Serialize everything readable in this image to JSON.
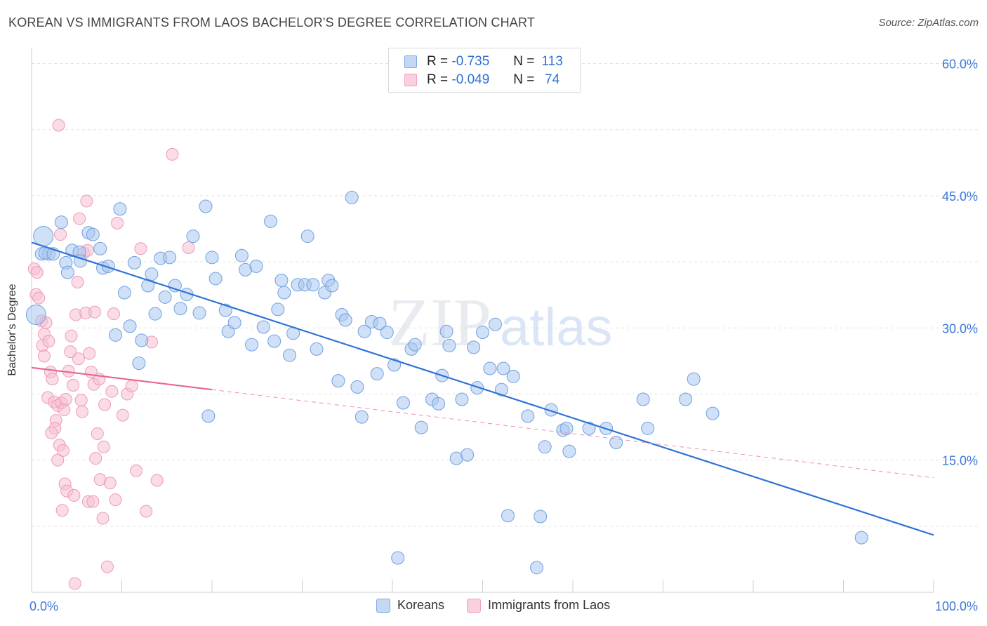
{
  "header": {
    "title": "KOREAN VS IMMIGRANTS FROM LAOS BACHELOR'S DEGREE CORRELATION CHART",
    "source": "Source: ZipAtlas.com"
  },
  "watermark": {
    "zip": "ZIP",
    "atlas": "atlas"
  },
  "legend": {
    "r_label": "R =",
    "n_label": "N =",
    "rows": [
      {
        "r": "-0.735",
        "n": "113",
        "color": "#7aaae8"
      },
      {
        "r": "-0.049",
        "n": "74",
        "color": "#f2a0ba"
      }
    ]
  },
  "bottom_legend": {
    "items": [
      {
        "label": "Koreans",
        "color": "#7aaae8"
      },
      {
        "label": "Immigrants from Laos",
        "color": "#f2a0ba"
      }
    ]
  },
  "chart_data": {
    "type": "scatter",
    "title": "KOREAN VS IMMIGRANTS FROM LAOS BACHELOR'S DEGREE CORRELATION CHART",
    "ylabel": "Bachelor's Degree",
    "xlabel": "",
    "xlim": [
      0,
      100
    ],
    "ylim": [
      0,
      61
    ],
    "x_tick_labels": [
      {
        "value": 0,
        "label": "0.0%"
      },
      {
        "value": 100,
        "label": "100.0%"
      }
    ],
    "y_tick_labels": [
      {
        "value": 15,
        "label": "15.0%"
      },
      {
        "value": 30,
        "label": "30.0%"
      },
      {
        "value": 45,
        "label": "45.0%"
      },
      {
        "value": 60,
        "label": "60.0%"
      }
    ],
    "grid": "horizontal dashed",
    "legend_position": "top-center",
    "series": [
      {
        "name": "Koreans",
        "color": "#4a86dc",
        "fill": "#a9c6ef",
        "trend": {
          "x": [
            0,
            100
          ],
          "y": [
            39.7,
            6.5
          ],
          "style": "solid"
        },
        "points": [
          [
            1.3,
            40.4
          ],
          [
            1.1,
            38.4
          ],
          [
            1.9,
            38.4
          ],
          [
            1.5,
            38.5
          ],
          [
            2.4,
            38.4
          ],
          [
            3.3,
            42.0
          ],
          [
            3.8,
            37.4
          ],
          [
            4.0,
            36.3
          ],
          [
            4.5,
            38.8
          ],
          [
            5.3,
            38.6
          ],
          [
            5.4,
            37.6
          ],
          [
            6.3,
            40.8
          ],
          [
            6.8,
            40.6
          ],
          [
            7.6,
            39.0
          ],
          [
            7.9,
            36.8
          ],
          [
            8.5,
            37.0
          ],
          [
            9.3,
            29.2
          ],
          [
            9.8,
            43.5
          ],
          [
            10.3,
            34.0
          ],
          [
            10.9,
            30.2
          ],
          [
            11.4,
            37.4
          ],
          [
            11.9,
            26.0
          ],
          [
            12.2,
            28.6
          ],
          [
            12.9,
            34.8
          ],
          [
            13.3,
            36.1
          ],
          [
            13.7,
            31.6
          ],
          [
            14.3,
            37.9
          ],
          [
            14.8,
            33.5
          ],
          [
            15.3,
            38.0
          ],
          [
            15.9,
            34.8
          ],
          [
            16.5,
            32.2
          ],
          [
            17.2,
            33.8
          ],
          [
            17.9,
            40.4
          ],
          [
            18.6,
            31.7
          ],
          [
            19.3,
            43.8
          ],
          [
            19.6,
            20.0
          ],
          [
            20.0,
            38.0
          ],
          [
            20.4,
            35.6
          ],
          [
            21.5,
            32.0
          ],
          [
            21.8,
            29.6
          ],
          [
            22.5,
            30.6
          ],
          [
            23.3,
            38.2
          ],
          [
            23.7,
            36.6
          ],
          [
            24.4,
            28.1
          ],
          [
            24.9,
            37.0
          ],
          [
            25.7,
            30.1
          ],
          [
            26.5,
            42.1
          ],
          [
            26.9,
            28.5
          ],
          [
            27.3,
            32.1
          ],
          [
            27.7,
            35.4
          ],
          [
            28.0,
            34.0
          ],
          [
            28.6,
            26.9
          ],
          [
            29.0,
            29.4
          ],
          [
            29.5,
            34.9
          ],
          [
            30.3,
            34.9
          ],
          [
            30.6,
            40.4
          ],
          [
            31.2,
            34.9
          ],
          [
            31.6,
            27.6
          ],
          [
            32.5,
            34.0
          ],
          [
            32.9,
            35.4
          ],
          [
            33.3,
            34.8
          ],
          [
            34.0,
            24.0
          ],
          [
            34.4,
            31.5
          ],
          [
            34.8,
            30.9
          ],
          [
            35.5,
            44.8
          ],
          [
            36.1,
            23.3
          ],
          [
            36.6,
            19.9
          ],
          [
            36.9,
            29.6
          ],
          [
            37.7,
            30.7
          ],
          [
            38.3,
            24.8
          ],
          [
            38.6,
            30.5
          ],
          [
            39.4,
            29.5
          ],
          [
            40.2,
            25.8
          ],
          [
            40.6,
            3.9
          ],
          [
            41.2,
            21.5
          ],
          [
            42.1,
            27.6
          ],
          [
            42.5,
            28.1
          ],
          [
            43.2,
            18.7
          ],
          [
            44.4,
            21.9
          ],
          [
            45.1,
            21.4
          ],
          [
            45.5,
            24.6
          ],
          [
            46.0,
            29.6
          ],
          [
            46.3,
            28.0
          ],
          [
            47.1,
            15.2
          ],
          [
            47.7,
            21.9
          ],
          [
            48.3,
            15.6
          ],
          [
            49.0,
            27.8
          ],
          [
            49.4,
            23.2
          ],
          [
            50.0,
            29.5
          ],
          [
            50.8,
            25.4
          ],
          [
            51.4,
            30.4
          ],
          [
            52.1,
            23.0
          ],
          [
            52.3,
            25.4
          ],
          [
            52.8,
            8.7
          ],
          [
            53.4,
            24.5
          ],
          [
            55.0,
            20.0
          ],
          [
            56.0,
            2.8
          ],
          [
            56.4,
            8.6
          ],
          [
            56.9,
            16.5
          ],
          [
            57.6,
            20.7
          ],
          [
            58.9,
            18.4
          ],
          [
            59.3,
            18.6
          ],
          [
            59.6,
            16.0
          ],
          [
            61.8,
            18.6
          ],
          [
            63.7,
            18.6
          ],
          [
            64.8,
            17.0
          ],
          [
            67.8,
            21.9
          ],
          [
            68.3,
            18.6
          ],
          [
            72.5,
            21.9
          ],
          [
            73.4,
            24.2
          ],
          [
            75.5,
            20.3
          ],
          [
            92.0,
            6.2
          ],
          [
            0.5,
            31.5
          ]
        ]
      },
      {
        "name": "Immigrants from Laos",
        "color": "#e96a94",
        "fill": "#f6c0d1",
        "trend": {
          "x": [
            0,
            100
          ],
          "y": [
            25.5,
            13.0
          ],
          "style": "solid to 20%, dashed after"
        },
        "points": [
          [
            0.3,
            36.7
          ],
          [
            0.6,
            36.3
          ],
          [
            0.5,
            33.8
          ],
          [
            0.8,
            33.4
          ],
          [
            1.1,
            30.8
          ],
          [
            1.2,
            28.0
          ],
          [
            1.4,
            29.3
          ],
          [
            1.6,
            30.6
          ],
          [
            1.4,
            26.8
          ],
          [
            1.9,
            28.5
          ],
          [
            2.1,
            25.0
          ],
          [
            1.8,
            22.1
          ],
          [
            2.3,
            24.2
          ],
          [
            2.5,
            21.6
          ],
          [
            2.7,
            19.5
          ],
          [
            2.9,
            21.2
          ],
          [
            2.6,
            18.6
          ],
          [
            3.1,
            16.7
          ],
          [
            2.9,
            15.0
          ],
          [
            3.3,
            21.5
          ],
          [
            3.5,
            16.1
          ],
          [
            3.7,
            12.3
          ],
          [
            3.9,
            11.5
          ],
          [
            3.4,
            9.3
          ],
          [
            3.8,
            21.9
          ],
          [
            4.1,
            25.1
          ],
          [
            4.3,
            27.3
          ],
          [
            4.6,
            23.5
          ],
          [
            4.4,
            29.1
          ],
          [
            4.9,
            31.5
          ],
          [
            5.1,
            35.2
          ],
          [
            5.3,
            42.4
          ],
          [
            5.5,
            21.8
          ],
          [
            5.8,
            38.5
          ],
          [
            6.1,
            44.4
          ],
          [
            6.3,
            10.3
          ],
          [
            6.6,
            25.0
          ],
          [
            6.9,
            23.6
          ],
          [
            7.1,
            15.2
          ],
          [
            7.3,
            18.0
          ],
          [
            7.6,
            12.8
          ],
          [
            7.9,
            8.4
          ],
          [
            8.1,
            21.3
          ],
          [
            8.4,
            2.9
          ],
          [
            8.7,
            12.4
          ],
          [
            8.9,
            22.8
          ],
          [
            9.1,
            31.6
          ],
          [
            9.5,
            41.9
          ],
          [
            10.1,
            20.1
          ],
          [
            10.6,
            22.5
          ],
          [
            11.1,
            23.4
          ],
          [
            11.6,
            13.8
          ],
          [
            12.1,
            39.0
          ],
          [
            12.7,
            9.2
          ],
          [
            13.3,
            28.4
          ],
          [
            13.9,
            12.7
          ],
          [
            15.6,
            49.7
          ],
          [
            17.4,
            39.1
          ],
          [
            3.2,
            40.6
          ],
          [
            3.0,
            53.0
          ],
          [
            4.7,
            11.0
          ],
          [
            5.2,
            26.5
          ],
          [
            6.0,
            31.7
          ],
          [
            6.4,
            27.1
          ],
          [
            6.8,
            10.3
          ],
          [
            7.0,
            31.8
          ],
          [
            7.5,
            24.2
          ],
          [
            8.0,
            16.5
          ],
          [
            9.3,
            10.5
          ],
          [
            4.8,
            1.0
          ],
          [
            2.2,
            18.1
          ],
          [
            3.6,
            20.7
          ],
          [
            5.6,
            20.5
          ],
          [
            6.2,
            38.8
          ]
        ]
      }
    ]
  }
}
